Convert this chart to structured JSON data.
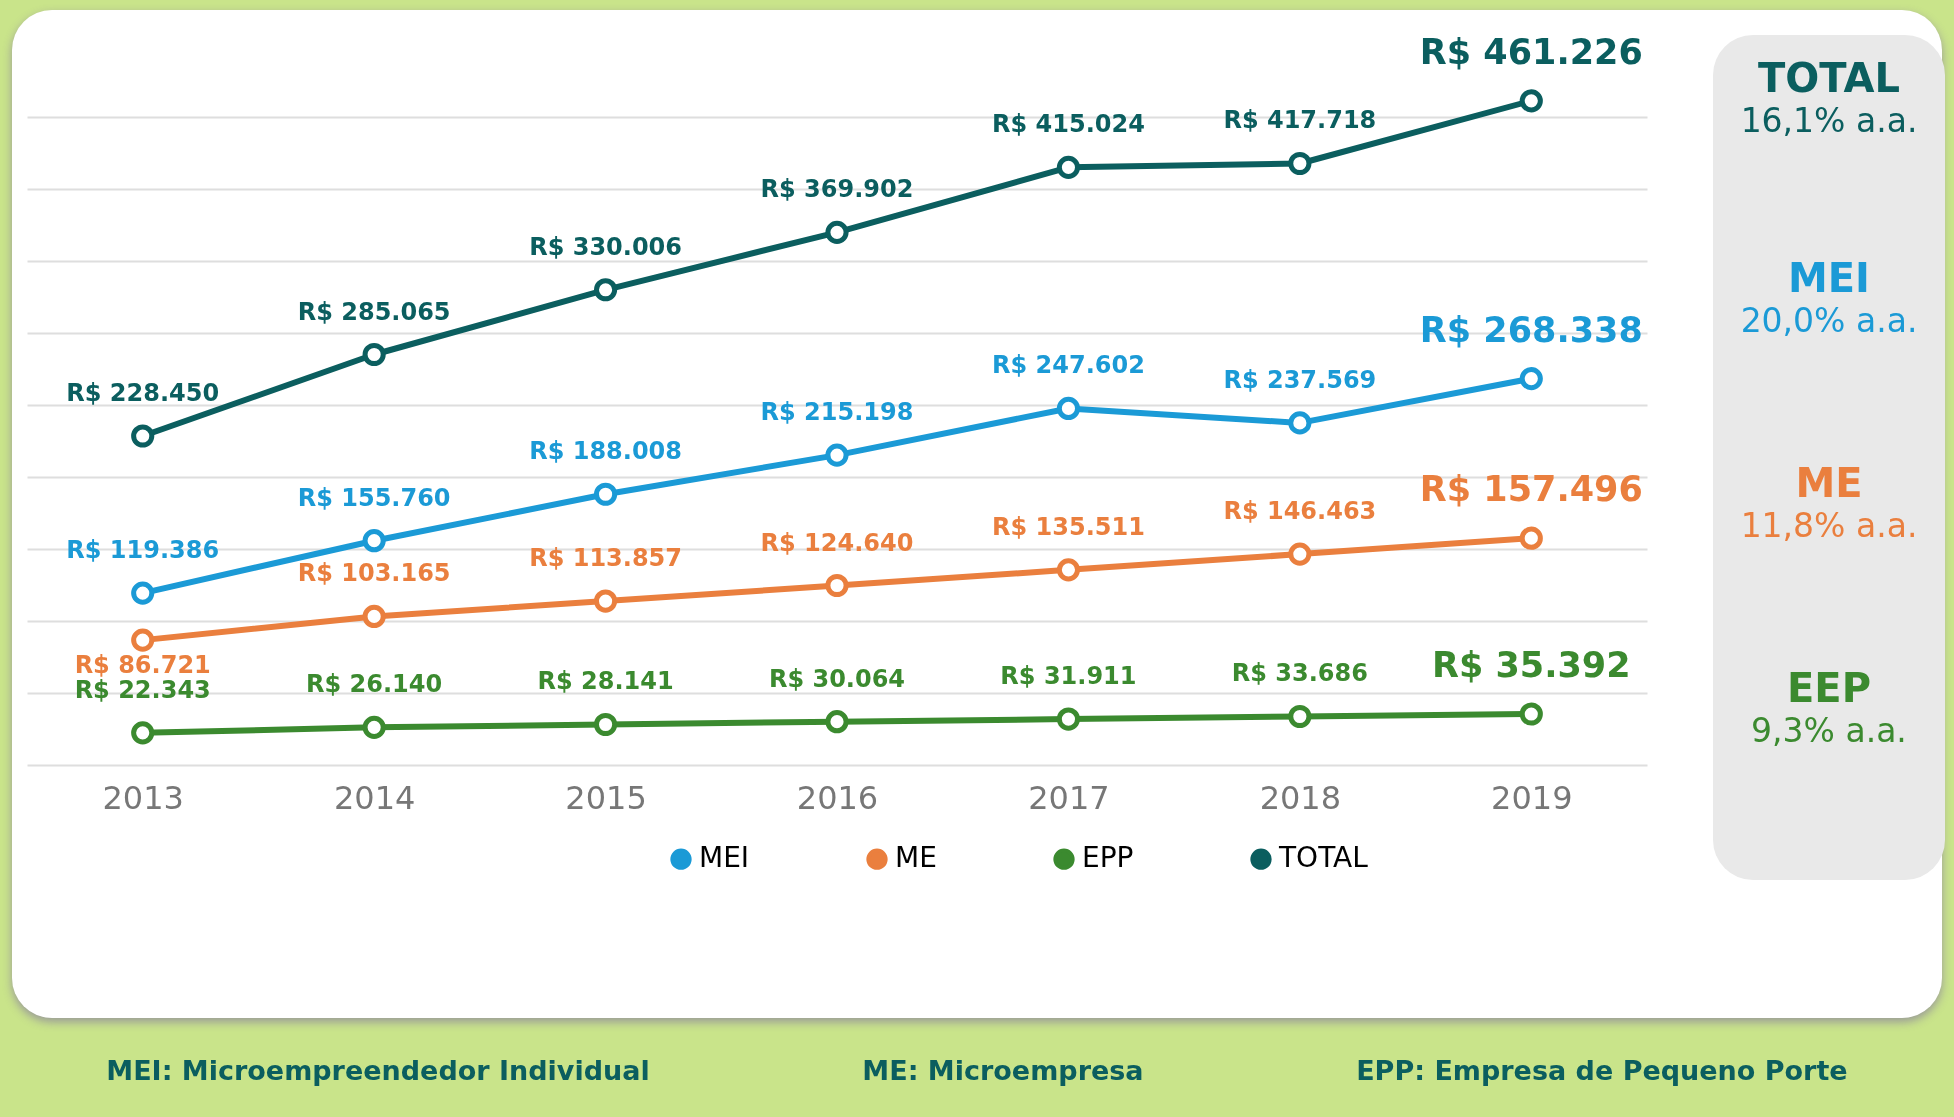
{
  "chart_data": {
    "type": "line",
    "categories": [
      "2013",
      "2014",
      "2015",
      "2016",
      "2017",
      "2018",
      "2019"
    ],
    "series": [
      {
        "name": "MEI",
        "color": "#1b9ad6",
        "values": [
          119386,
          155760,
          188008,
          215198,
          247602,
          237569,
          268338
        ],
        "value_labels": [
          "R$ 119.386",
          "R$ 155.760",
          "R$ 188.008",
          "R$ 215.198",
          "R$ 247.602",
          "R$ 237.569",
          "R$ 268.338"
        ]
      },
      {
        "name": "ME",
        "color": "#ea7f3e",
        "values": [
          86721,
          103165,
          113857,
          124640,
          135511,
          146463,
          157496
        ],
        "value_labels": [
          "R$ 86.721",
          "R$ 103.165",
          "R$ 113.857",
          "R$ 124.640",
          "R$ 135.511",
          "R$ 146.463",
          "R$ 157.496"
        ]
      },
      {
        "name": "EPP",
        "color": "#3b8a2f",
        "values": [
          22343,
          26140,
          28141,
          30064,
          31911,
          33686,
          35392
        ],
        "value_labels": [
          "R$ 22.343",
          "R$ 26.140",
          "R$ 28.141",
          "R$ 30.064",
          "R$ 31.911",
          "R$ 33.686",
          "R$ 35.392"
        ]
      },
      {
        "name": "TOTAL",
        "color": "#0b5e5f",
        "values": [
          228450,
          285065,
          330006,
          369902,
          415024,
          417718,
          461226
        ],
        "value_labels": [
          "R$ 228.450",
          "R$ 285.065",
          "R$ 330.006",
          "R$ 369.902",
          "R$ 415.024",
          "R$ 417.718",
          "R$ 461.226"
        ]
      }
    ],
    "yticks": [
      {
        "value": 0,
        "label": null
      },
      {
        "value": 50000,
        "label": null
      },
      {
        "value": 100000,
        "label": null
      },
      {
        "value": 150000,
        "label": null
      },
      {
        "value": 200000,
        "label": null
      },
      {
        "value": 250000,
        "label": null
      },
      {
        "value": 300000,
        "label": null
      },
      {
        "value": 350000,
        "label": null
      },
      {
        "value": 400000,
        "label": null
      },
      {
        "value": 450000,
        "label": null
      }
    ],
    "grid": "y",
    "tick_labels": "x",
    "legend": "bottom",
    "marker": "circle",
    "line_style": "solid",
    "annotations": [
      "TOTAL",
      "16,1% a.a.",
      "MEI",
      "20,0% a.a.",
      "ME",
      "11,8% a.a.",
      "EEP",
      "9,3% a.a.",
      "MEI: Microempreendedor Individual",
      "ME: Microempresa",
      "EPP: Empresa de Pequeno Porte"
    ]
  }
}
